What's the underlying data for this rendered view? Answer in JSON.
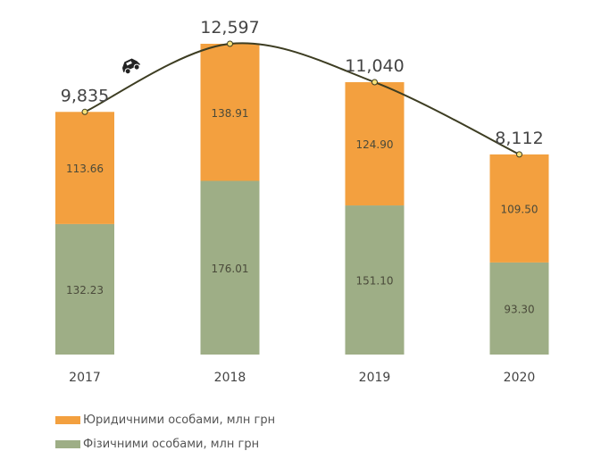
{
  "chart_data": {
    "type": "bar",
    "stacked": true,
    "categories": [
      "2017",
      "2018",
      "2019",
      "2020"
    ],
    "series": [
      {
        "name": "Фізичними особами, млн грн",
        "values": [
          132.23,
          176.01,
          151.1,
          93.3
        ],
        "color": "#9eae86"
      },
      {
        "name": "Юридичними особами, млн грн",
        "values": [
          113.66,
          138.91,
          124.9,
          109.5
        ],
        "color": "#f3a03f"
      }
    ],
    "line": {
      "values": [
        9835,
        12597,
        11040,
        8112
      ],
      "labels": [
        "9,835",
        "12,597",
        "11,040",
        "8,112"
      ],
      "color": "#3d3d22",
      "icon": "car-icon"
    },
    "value_labels": [
      [
        "132.23",
        "176.01",
        "151.10",
        "93.30"
      ],
      [
        "113.66",
        "138.91",
        "124.90",
        "109.50"
      ]
    ],
    "grid": false,
    "legend_position": "bottom-left"
  },
  "legend": [
    {
      "label": "Юридичними особами, млн грн",
      "color": "#f3a03f"
    },
    {
      "label": "Фізичними особами, млн грн",
      "color": "#9eae86"
    }
  ]
}
